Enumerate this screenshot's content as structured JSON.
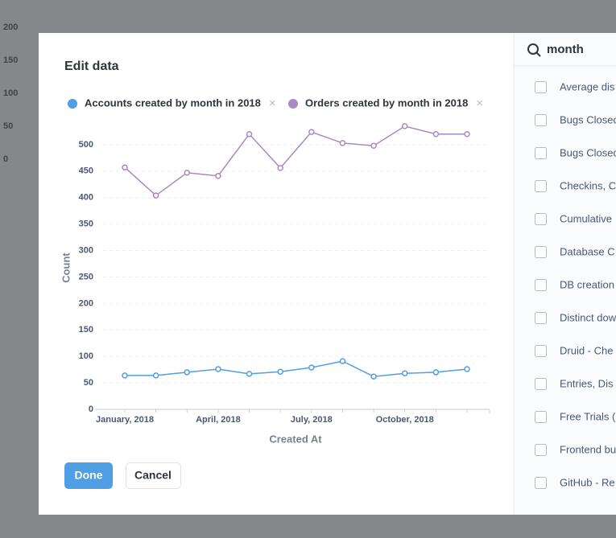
{
  "background": {
    "axis_labels": [
      "200",
      "150",
      "100",
      "50",
      "0"
    ]
  },
  "dialog": {
    "title": "Edit data",
    "done": "Done",
    "cancel": "Cancel"
  },
  "chart_data": {
    "type": "line",
    "categories": [
      "January, 2018",
      null,
      null,
      "April, 2018",
      null,
      null,
      "July, 2018",
      null,
      null,
      "October, 2018",
      null,
      null
    ],
    "series": [
      {
        "name": "Accounts created by month in 2018",
        "color": "#509ee3",
        "values": [
          64,
          64,
          70,
          76,
          67,
          71,
          79,
          91,
          62,
          68,
          70,
          76
        ]
      },
      {
        "name": "Orders created by month in 2018",
        "color": "#a989c5",
        "values": [
          457,
          404,
          447,
          441,
          520,
          456,
          524,
          503,
          498,
          535,
          520,
          520
        ]
      }
    ],
    "ylim": [
      0,
      550
    ],
    "yticks": [
      0,
      50,
      100,
      150,
      200,
      250,
      300,
      350,
      400,
      450,
      500
    ],
    "ylabel": "Count",
    "xlabel": "Created At",
    "grid": true,
    "legend_close": "×"
  },
  "sidebar": {
    "search": "month",
    "items": [
      "Average dis",
      "Bugs Closed",
      "Bugs Closed",
      "Checkins, C",
      "Cumulative",
      "Database C",
      "DB creation",
      "Distinct dow",
      "Druid - Che",
      "Entries, Dis",
      "Free Trials (",
      "Frontend bu",
      "GitHub - Re"
    ]
  }
}
